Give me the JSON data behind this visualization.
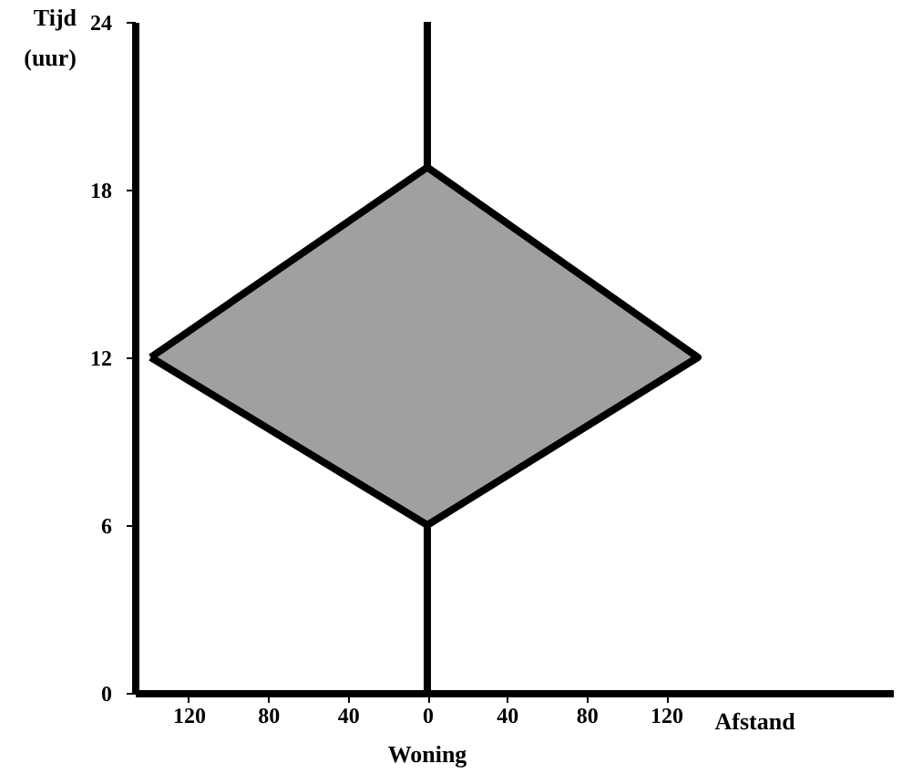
{
  "chart_data": {
    "type": "area",
    "xlabel": "Afstand",
    "ylabel": "Tijd (uur)",
    "annotations": [
      {
        "text": "Woning",
        "x": 0,
        "y": 0
      }
    ],
    "series": [
      {
        "color": "#a0a0a0",
        "x": [
          -139,
          0,
          136,
          0,
          -139
        ],
        "values": [
          12,
          18.8,
          12,
          6,
          12
        ]
      }
    ],
    "ref_lines": [
      {
        "axis": "x",
        "value": 0,
        "color": "#000000",
        "line_style": "solid"
      }
    ],
    "xlim": [
      -147,
      234
    ],
    "xticks": [
      {
        "value": -120,
        "label": "120"
      },
      {
        "value": -80,
        "label": "80"
      },
      {
        "value": -40,
        "label": "40"
      },
      0,
      40,
      80,
      120
    ],
    "ylim": [
      0,
      24
    ],
    "yticks": [
      0,
      6,
      12,
      18,
      24
    ]
  }
}
